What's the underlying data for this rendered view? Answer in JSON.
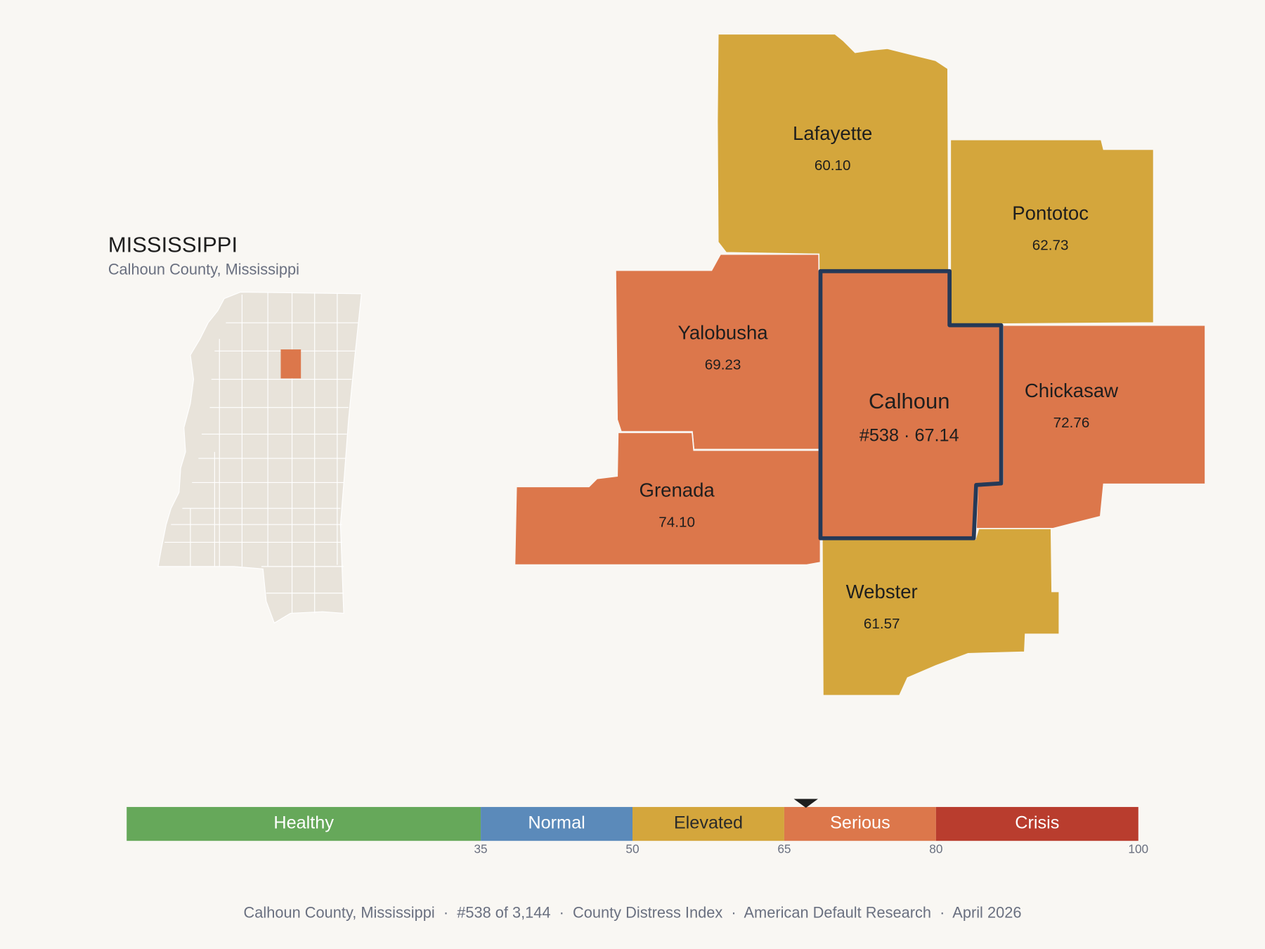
{
  "state": {
    "title": "MISSISSIPPI",
    "subtitle": "Calhoun County, Mississippi"
  },
  "counties": [
    {
      "name": "Lafayette",
      "value": 60.1,
      "label": "60.10"
    },
    {
      "name": "Pontotoc",
      "value": 62.73,
      "label": "62.73"
    },
    {
      "name": "Yalobusha",
      "value": 69.23,
      "label": "69.23"
    },
    {
      "name": "Calhoun",
      "value": 67.14,
      "label": "#538 · 67.14",
      "selected": true
    },
    {
      "name": "Chickasaw",
      "value": 72.76,
      "label": "72.76"
    },
    {
      "name": "Grenada",
      "value": 74.1,
      "label": "74.10"
    },
    {
      "name": "Webster",
      "value": 61.57,
      "label": "61.57"
    }
  ],
  "legend": {
    "xlim": [
      0,
      100
    ],
    "ticks": [
      35,
      50,
      65,
      80,
      100
    ],
    "bands": [
      {
        "name": "Healthy",
        "color": "#66a85a",
        "text_color": "#ffffff"
      },
      {
        "name": "Normal",
        "color": "#5b8aba",
        "text_color": "#ffffff"
      },
      {
        "name": "Elevated",
        "color": "#d4a63c",
        "text_color": "#2a2a2a"
      },
      {
        "name": "Serious",
        "color": "#dc774b",
        "text_color": "#ffffff"
      },
      {
        "name": "Crisis",
        "color": "#b93d2e",
        "text_color": "#ffffff"
      }
    ]
  },
  "footer": "Calhoun County, Mississippi  ·  #538 of 3,144  ·  County Distress Index  ·  American Default Research  ·  April 2026"
}
